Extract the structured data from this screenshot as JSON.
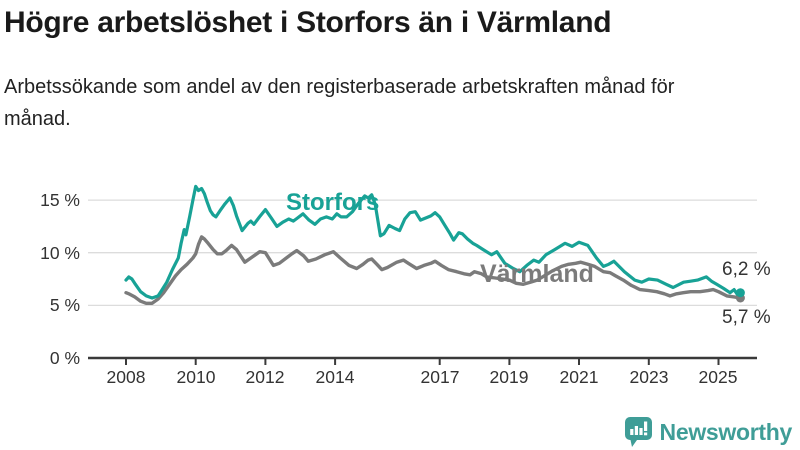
{
  "header": {
    "title": "Högre arbetslöshet i Storfors än i Värmland",
    "subtitle": "Arbetssökande som andel av den registerbaserade arbetskraften månad för månad."
  },
  "chart_data": {
    "type": "line",
    "unit": "%",
    "x_range": [
      2008.0,
      2025.63
    ],
    "ylim": [
      0,
      16.5
    ],
    "grid": "horizontal",
    "legend_position": "inline-labels",
    "y_ticks": [
      0,
      5,
      10,
      15
    ],
    "y_tick_labels": [
      "0 %",
      "5 %",
      "10 %",
      "15 %"
    ],
    "x_ticks": [
      2008,
      2010,
      2012,
      2014,
      2017,
      2019,
      2021,
      2023,
      2025
    ],
    "x_tick_labels": [
      "2008",
      "2010",
      "2012",
      "2014",
      "2017",
      "2019",
      "2021",
      "2023",
      "2025"
    ],
    "series": [
      {
        "name": "Värmland",
        "color": "#7b7b7b",
        "end_label": "5,7 %",
        "end_value": 5.7,
        "points": [
          [
            2008.0,
            6.2
          ],
          [
            2008.08,
            6.1
          ],
          [
            2008.25,
            5.8
          ],
          [
            2008.42,
            5.4
          ],
          [
            2008.58,
            5.2
          ],
          [
            2008.75,
            5.2
          ],
          [
            2008.92,
            5.6
          ],
          [
            2009.08,
            6.2
          ],
          [
            2009.25,
            7.0
          ],
          [
            2009.42,
            7.8
          ],
          [
            2009.58,
            8.4
          ],
          [
            2009.75,
            8.9
          ],
          [
            2009.92,
            9.5
          ],
          [
            2010.0,
            9.9
          ],
          [
            2010.08,
            10.8
          ],
          [
            2010.17,
            11.5
          ],
          [
            2010.25,
            11.3
          ],
          [
            2010.33,
            11.0
          ],
          [
            2010.5,
            10.3
          ],
          [
            2010.62,
            9.9
          ],
          [
            2010.75,
            9.9
          ],
          [
            2010.87,
            10.2
          ],
          [
            2011.03,
            10.7
          ],
          [
            2011.17,
            10.3
          ],
          [
            2011.41,
            9.1
          ],
          [
            2011.58,
            9.5
          ],
          [
            2011.84,
            10.1
          ],
          [
            2012.0,
            10.0
          ],
          [
            2012.23,
            8.8
          ],
          [
            2012.4,
            9.0
          ],
          [
            2012.6,
            9.5
          ],
          [
            2012.76,
            9.9
          ],
          [
            2012.9,
            10.2
          ],
          [
            2013.1,
            9.7
          ],
          [
            2013.23,
            9.2
          ],
          [
            2013.45,
            9.4
          ],
          [
            2013.7,
            9.8
          ],
          [
            2013.95,
            10.1
          ],
          [
            2014.15,
            9.5
          ],
          [
            2014.4,
            8.8
          ],
          [
            2014.62,
            8.5
          ],
          [
            2014.8,
            8.9
          ],
          [
            2014.95,
            9.3
          ],
          [
            2015.05,
            9.4
          ],
          [
            2015.2,
            8.9
          ],
          [
            2015.34,
            8.4
          ],
          [
            2015.5,
            8.6
          ],
          [
            2015.77,
            9.1
          ],
          [
            2015.96,
            9.3
          ],
          [
            2016.1,
            9.0
          ],
          [
            2016.34,
            8.5
          ],
          [
            2016.55,
            8.8
          ],
          [
            2016.75,
            9.0
          ],
          [
            2016.87,
            9.2
          ],
          [
            2017.05,
            8.8
          ],
          [
            2017.25,
            8.4
          ],
          [
            2017.49,
            8.2
          ],
          [
            2017.7,
            8.0
          ],
          [
            2017.87,
            7.9
          ],
          [
            2018.0,
            8.2
          ],
          [
            2018.2,
            8.0
          ],
          [
            2018.35,
            7.7
          ],
          [
            2018.6,
            7.6
          ],
          [
            2018.8,
            7.5
          ],
          [
            2019.0,
            7.4
          ],
          [
            2019.2,
            7.1
          ],
          [
            2019.4,
            7.0
          ],
          [
            2019.6,
            7.2
          ],
          [
            2019.8,
            7.4
          ],
          [
            2020.0,
            7.8
          ],
          [
            2020.25,
            8.3
          ],
          [
            2020.5,
            8.7
          ],
          [
            2020.7,
            8.9
          ],
          [
            2020.9,
            9.0
          ],
          [
            2021.05,
            9.1
          ],
          [
            2021.25,
            8.9
          ],
          [
            2021.45,
            8.7
          ],
          [
            2021.7,
            8.2
          ],
          [
            2021.89,
            8.1
          ],
          [
            2022.05,
            7.8
          ],
          [
            2022.27,
            7.4
          ],
          [
            2022.5,
            6.9
          ],
          [
            2022.75,
            6.5
          ],
          [
            2023.0,
            6.4
          ],
          [
            2023.23,
            6.3
          ],
          [
            2023.45,
            6.1
          ],
          [
            2023.61,
            5.9
          ],
          [
            2023.8,
            6.1
          ],
          [
            2023.99,
            6.2
          ],
          [
            2024.2,
            6.3
          ],
          [
            2024.47,
            6.3
          ],
          [
            2024.7,
            6.4
          ],
          [
            2024.85,
            6.5
          ],
          [
            2025.0,
            6.3
          ],
          [
            2025.24,
            5.9
          ],
          [
            2025.45,
            5.8
          ],
          [
            2025.63,
            5.7
          ]
        ]
      },
      {
        "name": "Storfors",
        "color": "#18a296",
        "end_label": "6,2 %",
        "end_value": 6.2,
        "points": [
          [
            2008.0,
            7.4
          ],
          [
            2008.08,
            7.7
          ],
          [
            2008.17,
            7.5
          ],
          [
            2008.25,
            7.1
          ],
          [
            2008.42,
            6.3
          ],
          [
            2008.58,
            5.9
          ],
          [
            2008.75,
            5.7
          ],
          [
            2008.92,
            5.9
          ],
          [
            2009.0,
            6.3
          ],
          [
            2009.17,
            7.2
          ],
          [
            2009.33,
            8.4
          ],
          [
            2009.5,
            9.5
          ],
          [
            2009.58,
            10.9
          ],
          [
            2009.67,
            12.2
          ],
          [
            2009.72,
            11.7
          ],
          [
            2009.83,
            13.5
          ],
          [
            2009.92,
            15.0
          ],
          [
            2010.0,
            16.3
          ],
          [
            2010.08,
            15.9
          ],
          [
            2010.17,
            16.1
          ],
          [
            2010.25,
            15.6
          ],
          [
            2010.33,
            14.8
          ],
          [
            2010.42,
            14.0
          ],
          [
            2010.5,
            13.6
          ],
          [
            2010.58,
            13.4
          ],
          [
            2010.7,
            14.0
          ],
          [
            2010.83,
            14.6
          ],
          [
            2010.98,
            15.2
          ],
          [
            2011.08,
            14.5
          ],
          [
            2011.17,
            13.5
          ],
          [
            2011.33,
            12.1
          ],
          [
            2011.5,
            12.8
          ],
          [
            2011.58,
            13.0
          ],
          [
            2011.67,
            12.7
          ],
          [
            2011.83,
            13.4
          ],
          [
            2012.0,
            14.1
          ],
          [
            2012.17,
            13.3
          ],
          [
            2012.33,
            12.5
          ],
          [
            2012.5,
            12.9
          ],
          [
            2012.67,
            13.2
          ],
          [
            2012.8,
            13.0
          ],
          [
            2012.92,
            13.3
          ],
          [
            2013.08,
            13.7
          ],
          [
            2013.25,
            13.1
          ],
          [
            2013.42,
            12.7
          ],
          [
            2013.58,
            13.2
          ],
          [
            2013.75,
            13.4
          ],
          [
            2013.92,
            13.2
          ],
          [
            2014.05,
            13.7
          ],
          [
            2014.17,
            13.4
          ],
          [
            2014.33,
            13.4
          ],
          [
            2014.5,
            13.9
          ],
          [
            2014.67,
            14.7
          ],
          [
            2014.85,
            15.4
          ],
          [
            2014.95,
            15.2
          ],
          [
            2015.05,
            15.5
          ],
          [
            2015.15,
            14.6
          ],
          [
            2015.3,
            11.6
          ],
          [
            2015.4,
            11.8
          ],
          [
            2015.55,
            12.6
          ],
          [
            2015.72,
            12.3
          ],
          [
            2015.85,
            12.1
          ],
          [
            2016.0,
            13.2
          ],
          [
            2016.15,
            13.8
          ],
          [
            2016.3,
            13.9
          ],
          [
            2016.45,
            13.1
          ],
          [
            2016.6,
            13.3
          ],
          [
            2016.75,
            13.5
          ],
          [
            2016.87,
            13.8
          ],
          [
            2017.0,
            13.4
          ],
          [
            2017.15,
            12.6
          ],
          [
            2017.3,
            11.8
          ],
          [
            2017.4,
            11.2
          ],
          [
            2017.55,
            11.9
          ],
          [
            2017.65,
            11.8
          ],
          [
            2017.8,
            11.3
          ],
          [
            2017.95,
            10.9
          ],
          [
            2018.06,
            10.7
          ],
          [
            2018.25,
            10.3
          ],
          [
            2018.49,
            9.8
          ],
          [
            2018.64,
            10.1
          ],
          [
            2018.87,
            9.0
          ],
          [
            2019.11,
            8.5
          ],
          [
            2019.3,
            8.2
          ],
          [
            2019.5,
            8.8
          ],
          [
            2019.7,
            9.3
          ],
          [
            2019.85,
            9.1
          ],
          [
            2020.05,
            9.8
          ],
          [
            2020.3,
            10.3
          ],
          [
            2020.6,
            10.9
          ],
          [
            2020.8,
            10.6
          ],
          [
            2021.0,
            11.0
          ],
          [
            2021.25,
            10.7
          ],
          [
            2021.5,
            9.5
          ],
          [
            2021.7,
            8.7
          ],
          [
            2021.85,
            8.9
          ],
          [
            2022.0,
            9.2
          ],
          [
            2022.3,
            8.2
          ],
          [
            2022.6,
            7.4
          ],
          [
            2022.8,
            7.2
          ],
          [
            2023.0,
            7.5
          ],
          [
            2023.25,
            7.4
          ],
          [
            2023.5,
            7.0
          ],
          [
            2023.7,
            6.7
          ],
          [
            2024.0,
            7.2
          ],
          [
            2024.2,
            7.3
          ],
          [
            2024.4,
            7.4
          ],
          [
            2024.65,
            7.7
          ],
          [
            2024.8,
            7.3
          ],
          [
            2024.95,
            7.0
          ],
          [
            2025.15,
            6.6
          ],
          [
            2025.33,
            6.2
          ],
          [
            2025.45,
            6.5
          ],
          [
            2025.55,
            6.0
          ],
          [
            2025.63,
            6.2
          ]
        ]
      }
    ],
    "colors": {
      "storfors": "#18a296",
      "varmland": "#7b7b7b",
      "grid": "#dcdcdc",
      "axis": "#3a3a3a",
      "text": "#333333"
    }
  },
  "footer": {
    "brand": "Newsworthy",
    "brand_color": "#3f9d97"
  }
}
